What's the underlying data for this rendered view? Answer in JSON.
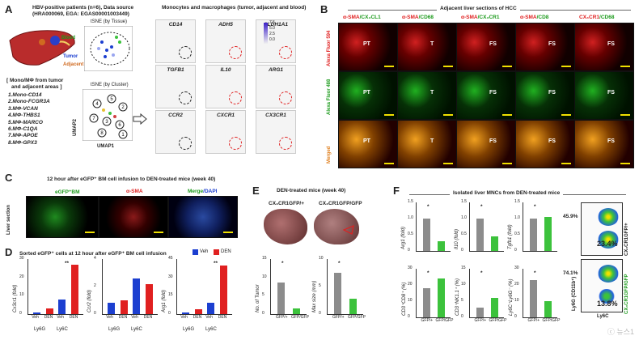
{
  "panelA": {
    "label": "A",
    "title1": "HBV-positive patients (n=6), Data source",
    "title2": "(HRA000069, EGA: EGAS00001003449)",
    "blood": "Blood",
    "tumor": "Tumor",
    "adjacent": "Adjacent",
    "tsne_tissue": "tSNE (by Tissue)",
    "tsne_cluster": "tSNE (by Cluster)",
    "list_title1": "[ Mono/MΦ from tumor",
    "list_title2": "and adjacent areas ]",
    "list": [
      "1.Mono-CD14",
      "2.Mono-FCGR3A",
      "3.MΦ-VCAN",
      "4.MΦ-THBS1",
      "5.MΦ-MARCO",
      "6.MΦ-C1QA",
      "7.MΦ-APOE",
      "8.MΦ-GPX3"
    ],
    "umap1": "UMAP1",
    "umap2": "UMAP2",
    "feature_title": "Monocytes and macrophages (tumor, adjacent and blood)",
    "genes": [
      "CD14",
      "ADH5",
      "ALDH1A1",
      "TGFB1",
      "IL10",
      "ARG1",
      "CCR2",
      "CXCR1",
      "CX3CR1"
    ],
    "scale_vals": [
      "7.5",
      "5.0",
      "2.5",
      "0.0"
    ]
  },
  "panelB": {
    "label": "B",
    "title": "Adjacent liver sections of HCC",
    "columns": [
      {
        "a": "α-SMA",
        "b": "/CX₃CL1"
      },
      {
        "a": "α-SMA",
        "b": "/CD68"
      },
      {
        "a": "α-SMA",
        "b": "/CX₃CR1"
      },
      {
        "a": "α-SMA",
        "b": "/CD8"
      },
      {
        "a": "CX₃CR1",
        "b": "/CD68"
      }
    ],
    "rows": [
      "Alexa Fluor 594",
      "Alexa Fluor 488",
      "Merged"
    ],
    "tags": [
      "PT",
      "T",
      "FS",
      "FS",
      "FS"
    ]
  },
  "panelC": {
    "label": "C",
    "title": "12 hour after eGFP⁺ BM cell infusion to DEN-treated mice (week 40)",
    "col1": "eGFP⁺BM",
    "col2": "α-SMA",
    "col3a": "Merge",
    "col3b": "/DAPI",
    "side": "Liver section"
  },
  "panelD": {
    "label": "D",
    "title": "Sorted eGFP⁺ cells at 12 hour after eGFP⁺ BM cell infusion",
    "legend_veh": "Veh",
    "legend_den": "DEN",
    "xgroups": [
      "Ly6G",
      "Ly6C"
    ],
    "xticks": [
      "Veh",
      "DEN",
      "Veh",
      "DEN"
    ],
    "sig": "**"
  },
  "panelE": {
    "label": "E",
    "title": "DEN-treated mice (week 40)",
    "left": "CX₃CR1GFP/+",
    "right": "CX₃CR1GFP/GFP",
    "sig": "*",
    "xticks": [
      "GFP/+",
      "GFP/GFP"
    ]
  },
  "panelF": {
    "label": "F",
    "title": "Isolated liver MNCs from DEN-treated mice",
    "sig": "*",
    "xticks": [
      "GFP/+",
      "GFP/GFP"
    ],
    "flow_pcts": [
      "45.9%",
      "23.4%",
      "74.1%",
      "13.8%"
    ],
    "flow_side1": "CX₃CR1GFP/+",
    "flow_side2": "CX₃CR1GFP/GFP",
    "flow_ylabel": "Ly6G (CD11b⁺)",
    "flow_xlabel": "Ly6C"
  },
  "charts": {
    "D": [
      {
        "ylabel": "Cx3cr1 (fold)",
        "ylim": [
          0,
          30
        ],
        "yticks": [
          "0",
          "10",
          "20",
          "30"
        ],
        "values": [
          1,
          3,
          8,
          27
        ]
      },
      {
        "ylabel": "Ccr2 (fold)",
        "ylim": [
          0,
          4
        ],
        "yticks": [
          "0",
          "2",
          "4"
        ],
        "values": [
          0.8,
          1,
          2.6,
          2.2
        ]
      },
      {
        "ylabel": "Arg1 (fold)",
        "ylim": [
          0,
          45
        ],
        "yticks": [
          "0",
          "15",
          "30",
          "45"
        ],
        "values": [
          1,
          4,
          9,
          40
        ]
      }
    ],
    "E": [
      {
        "ylabel": "No. of Tumor",
        "ylim": [
          0,
          15
        ],
        "yticks": [
          "0",
          "5",
          "10",
          "15"
        ],
        "values": [
          8.5,
          1.5
        ]
      },
      {
        "ylabel": "Max size (mm)",
        "ylim": [
          0,
          10
        ],
        "yticks": [
          "0",
          "5",
          "10"
        ],
        "values": [
          7.5,
          2.8
        ]
      }
    ],
    "F": [
      {
        "ylabel": "Arg1 (fold)",
        "ylim": [
          0,
          1.5
        ],
        "yticks": [
          "0",
          "0.5",
          "1.0",
          "1.5"
        ],
        "values": [
          1.0,
          0.3
        ]
      },
      {
        "ylabel": "Il10 (fold)",
        "ylim": [
          0,
          1.5
        ],
        "yticks": [
          "0",
          "0.5",
          "1.0",
          "1.5"
        ],
        "values": [
          1.0,
          0.45
        ]
      },
      {
        "ylabel": "Tgfb1 (fold)",
        "ylim": [
          0,
          1.5
        ],
        "yticks": [
          "0",
          "0.5",
          "1.0",
          "1.5"
        ],
        "values": [
          1.0,
          1.05
        ]
      },
      {
        "ylabel": "CD3⁺CD8⁺ (%)",
        "ylim": [
          0,
          30
        ],
        "yticks": [
          "0",
          "10",
          "20",
          "30"
        ],
        "values": [
          18,
          24
        ]
      },
      {
        "ylabel": "CD3⁺NK1.1⁺ (%)",
        "ylim": [
          0,
          15
        ],
        "yticks": [
          "0",
          "5",
          "10",
          "15"
        ],
        "values": [
          3,
          6
        ]
      },
      {
        "ylabel": "Ly6C⁺Ly6G⁻ (%)",
        "ylim": [
          0,
          30
        ],
        "yticks": [
          "0",
          "10",
          "20",
          "30"
        ],
        "values": [
          23,
          10
        ]
      }
    ]
  },
  "colors": {
    "gray": "#8c8c8c",
    "green": "#3cc23c",
    "blue": "#1c3fd0",
    "red": "#e02020",
    "veh": "#1c3fd0",
    "den": "#e02020"
  },
  "watermark": "ⓒ 뉴스1"
}
